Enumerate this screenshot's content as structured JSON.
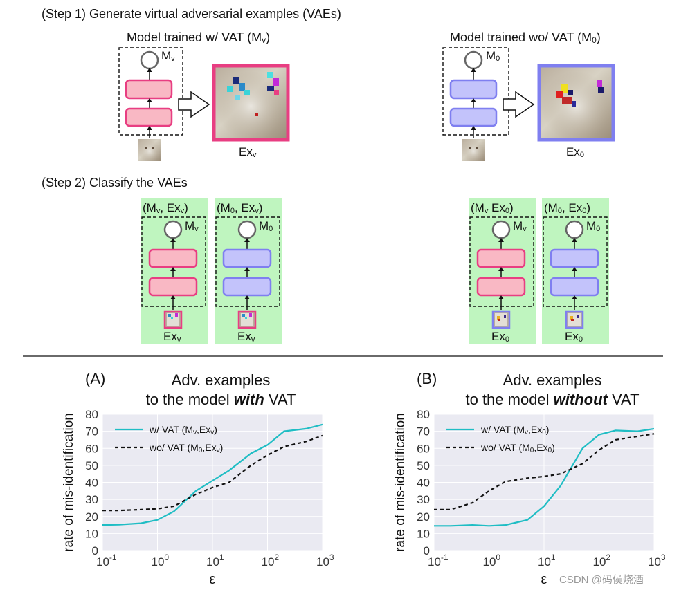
{
  "step1": {
    "heading": "(Step 1) Generate virtual adversarial examples (VAEs)",
    "vat": {
      "title_main": "Model trained w/ VAT (M",
      "title_sub": "v",
      "title_end": ")",
      "model_main": "M",
      "model_sub": "v",
      "example_main": "Ex",
      "example_sub": "v"
    },
    "novat": {
      "title_main": "Model trained wo/  VAT (M",
      "title_sub": "0",
      "title_end": ")",
      "model_main": "M",
      "model_sub": "0",
      "example_main": "Ex",
      "example_sub": "0"
    }
  },
  "step2": {
    "heading": "(Step 2) Classify the VAEs",
    "panels": [
      {
        "label_a": "(M",
        "label_a_sub": "v",
        "label_b": ", Ex",
        "label_b_sub": "v",
        "label_end": ")",
        "model_main": "M",
        "model_sub": "v",
        "example_main": "Ex",
        "example_sub": "v",
        "kind": "vat",
        "adv": "vat"
      },
      {
        "label_a": "(M",
        "label_a_sub": "0",
        "label_b": ", Ex",
        "label_b_sub": "v",
        "label_end": ")",
        "model_main": "M",
        "model_sub": "0",
        "example_main": "Ex",
        "example_sub": "v",
        "kind": "novat",
        "adv": "vat"
      },
      {
        "label_a": "(M",
        "label_a_sub": "v",
        "label_b": " Ex",
        "label_b_sub": "0",
        "label_end": ")",
        "model_main": "M",
        "model_sub": "v",
        "example_main": "Ex",
        "example_sub": "0",
        "kind": "vat",
        "adv": "novat"
      },
      {
        "label_a": "(M",
        "label_a_sub": "0",
        "label_b": ", Ex",
        "label_b_sub": "0",
        "label_end": ")",
        "model_main": "M",
        "model_sub": "0",
        "example_main": "Ex",
        "example_sub": "0",
        "kind": "novat",
        "adv": "novat"
      }
    ]
  },
  "colors": {
    "vat_fill": "#f9b8c4",
    "vat_stroke": "#e83e82",
    "novat_fill": "#c3c3fb",
    "novat_stroke": "#7f7ff0",
    "panel_bg": "#bff5bf",
    "line_solid": "#1fbdc4",
    "line_dashed": "#111111",
    "plot_bg": "#eaeaf2"
  },
  "watermark": "CSDN @码侯烧酒",
  "chart_data": [
    {
      "type": "line",
      "panel_label": "(A)",
      "title_line1": "Adv. examples",
      "title_line2_pre": "to the model ",
      "title_line2_em": "with",
      "title_line2_post": " VAT",
      "xlabel": "ε",
      "ylabel": "rate of mis-identification",
      "xscale": "log",
      "xlim": [
        0.1,
        1000
      ],
      "ylim": [
        0,
        80
      ],
      "yticks": [
        "0",
        "10",
        "20",
        "30",
        "40",
        "50",
        "60",
        "70",
        "80"
      ],
      "xticks": [
        {
          "base": "10",
          "exp": "-1"
        },
        {
          "base": "10",
          "exp": "0"
        },
        {
          "base": "10",
          "exp": "1"
        },
        {
          "base": "10",
          "exp": "2"
        },
        {
          "base": "10",
          "exp": "3"
        }
      ],
      "legend_placement": "top-left",
      "series": [
        {
          "name_pre": "w/ VAT (M",
          "name_sub1": "v",
          "name_mid": ",Ex",
          "name_sub2": "v",
          "name_end": ")",
          "style": "solid",
          "x": [
            0.1,
            0.2,
            0.5,
            1,
            2,
            5,
            10,
            20,
            50,
            100,
            200,
            500,
            1000
          ],
          "y": [
            15,
            15.2,
            16,
            18,
            23,
            35,
            41,
            47,
            57,
            62,
            70,
            71.5,
            74
          ]
        },
        {
          "name_pre": "wo/ VAT (M",
          "name_sub1": "0",
          "name_mid": ",Ex",
          "name_sub2": "v",
          "name_end": ")",
          "style": "dashed",
          "x": [
            0.1,
            0.2,
            0.5,
            1,
            2,
            5,
            10,
            20,
            50,
            100,
            200,
            500,
            1000
          ],
          "y": [
            23.5,
            23.5,
            24,
            24.5,
            26,
            33,
            37,
            40,
            50,
            56,
            61,
            64,
            67.5
          ]
        }
      ]
    },
    {
      "type": "line",
      "panel_label": "(B)",
      "title_line1": "Adv. examples",
      "title_line2_pre": "to the model ",
      "title_line2_em": "without",
      "title_line2_post": " VAT",
      "xlabel": "ε",
      "ylabel": "rate of mis-identification",
      "xscale": "log",
      "xlim": [
        0.1,
        1000
      ],
      "ylim": [
        0,
        80
      ],
      "yticks": [
        "0",
        "10",
        "20",
        "30",
        "40",
        "50",
        "60",
        "70",
        "80"
      ],
      "xticks": [
        {
          "base": "10",
          "exp": "-1"
        },
        {
          "base": "10",
          "exp": "0"
        },
        {
          "base": "10",
          "exp": "1"
        },
        {
          "base": "10",
          "exp": "2"
        },
        {
          "base": "10",
          "exp": "3"
        }
      ],
      "legend_placement": "top-left",
      "series": [
        {
          "name_pre": "w/ VAT (M",
          "name_sub1": "v",
          "name_mid": ",Ex",
          "name_sub2": "0",
          "name_end": ")",
          "style": "solid",
          "x": [
            0.1,
            0.2,
            0.5,
            1,
            2,
            5,
            10,
            20,
            50,
            100,
            200,
            500,
            1000
          ],
          "y": [
            14.5,
            14.5,
            15,
            14.5,
            15,
            18,
            26,
            38,
            60,
            68,
            70.5,
            70,
            71.5
          ]
        },
        {
          "name_pre": "wo/ VAT (M",
          "name_sub1": "0",
          "name_mid": ",Ex",
          "name_sub2": "0",
          "name_end": ")",
          "style": "dashed",
          "x": [
            0.1,
            0.2,
            0.5,
            1,
            2,
            5,
            10,
            20,
            50,
            100,
            200,
            500,
            1000
          ],
          "y": [
            24,
            24,
            28,
            35,
            40.5,
            42.5,
            43.5,
            45,
            51,
            59,
            65,
            67,
            68.5
          ]
        }
      ]
    }
  ]
}
